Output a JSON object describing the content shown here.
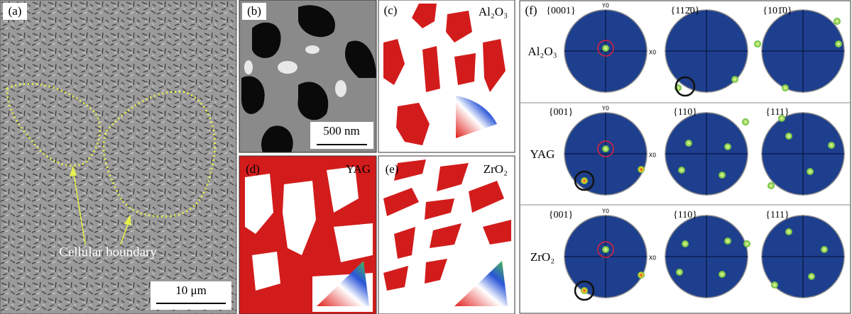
{
  "panels": {
    "a": {
      "label": "(a)",
      "annotation": "Cellular boundary",
      "scale_bar": "10 μm"
    },
    "b": {
      "label": "(b)",
      "scale_bar": "500 nm"
    },
    "c": {
      "label": "(c)",
      "phase": "Al₂O₃"
    },
    "d": {
      "label": "(d)",
      "phase": "YAG"
    },
    "e": {
      "label": "(e)",
      "phase": "ZrO₂"
    },
    "f": {
      "label": "(f)",
      "axis_labels": {
        "y": "Y0",
        "x": "X0"
      },
      "rows": [
        {
          "phase": "Al₂O₃",
          "planes": [
            "{0001}",
            "{112̄0}",
            "{101̄0}"
          ]
        },
        {
          "phase": "YAG",
          "planes": [
            "{001}",
            "{110}",
            "{111}"
          ]
        },
        {
          "phase": "ZrO₂",
          "planes": [
            "{001}",
            "{110}",
            "{111}"
          ]
        }
      ]
    }
  }
}
